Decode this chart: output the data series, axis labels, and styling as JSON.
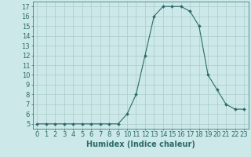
{
  "x": [
    0,
    1,
    2,
    3,
    4,
    5,
    6,
    7,
    8,
    9,
    10,
    11,
    12,
    13,
    14,
    15,
    16,
    17,
    18,
    19,
    20,
    21,
    22,
    23
  ],
  "y": [
    5,
    5,
    5,
    5,
    5,
    5,
    5,
    5,
    5,
    5,
    6,
    8,
    12,
    16,
    17,
    17,
    17,
    16.5,
    15,
    10,
    8.5,
    7,
    6.5,
    6.5
  ],
  "line_color": "#2d6b6b",
  "marker": "D",
  "marker_size": 2.0,
  "background_color": "#cce8e8",
  "grid_color": "#aacccc",
  "xlabel": "Humidex (Indice chaleur)",
  "xlim": [
    -0.5,
    23.5
  ],
  "ylim": [
    4.5,
    17.5
  ],
  "yticks": [
    5,
    6,
    7,
    8,
    9,
    10,
    11,
    12,
    13,
    14,
    15,
    16,
    17
  ],
  "xticks": [
    0,
    1,
    2,
    3,
    4,
    5,
    6,
    7,
    8,
    9,
    10,
    11,
    12,
    13,
    14,
    15,
    16,
    17,
    18,
    19,
    20,
    21,
    22,
    23
  ],
  "tick_color": "#2d6b6b",
  "label_color": "#2d6b6b",
  "tick_fontsize": 6,
  "xlabel_fontsize": 7,
  "linewidth": 0.8
}
